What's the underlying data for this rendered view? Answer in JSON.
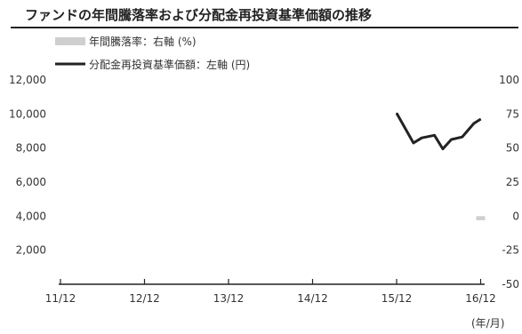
{
  "chart_data": {
    "type": "line",
    "title": "ファンドの年間騰落率および分配金再投資基準価額の推移",
    "x_tick_labels": [
      "11/12",
      "12/12",
      "13/12",
      "14/12",
      "15/12",
      "16/12"
    ],
    "x_unit_label": "(年/月)",
    "y_left": {
      "ticks": [
        2000,
        4000,
        6000,
        8000,
        10000,
        12000
      ],
      "tick_labels": [
        "2,000",
        "4,000",
        "6,000",
        "8,000",
        "10,000",
        "12,000"
      ],
      "ylim": [
        0,
        12000
      ]
    },
    "y_right": {
      "ticks": [
        -50,
        -25,
        0,
        25,
        50,
        75,
        100
      ],
      "tick_labels": [
        "-50",
        "-25",
        "0",
        "25",
        "50",
        "75",
        "100"
      ],
      "ylim": [
        -50,
        100
      ]
    },
    "legend": [
      {
        "label": "年間騰落率：右軸 (%)",
        "style": "bar",
        "color": "#cfcfcf"
      },
      {
        "label": "分配金再投資基準価額：左軸 (円)",
        "style": "line",
        "color": "#222222"
      }
    ],
    "series": [
      {
        "name": "分配金再投資基準価額：左軸 (円)",
        "axis": "left",
        "type": "line",
        "color": "#222222",
        "points": [
          {
            "x": 4.0,
            "y": 10050
          },
          {
            "x": 4.2,
            "y": 8300
          },
          {
            "x": 4.3,
            "y": 8600
          },
          {
            "x": 4.45,
            "y": 8750
          },
          {
            "x": 4.55,
            "y": 7950
          },
          {
            "x": 4.65,
            "y": 8500
          },
          {
            "x": 4.78,
            "y": 8650
          },
          {
            "x": 4.92,
            "y": 9450
          },
          {
            "x": 5.0,
            "y": 9700
          }
        ]
      },
      {
        "name": "年間騰落率：右軸 (%)",
        "axis": "right",
        "type": "bar",
        "color": "#cfcfcf",
        "points": [
          {
            "x": 5.0,
            "y": -3
          }
        ]
      }
    ]
  }
}
